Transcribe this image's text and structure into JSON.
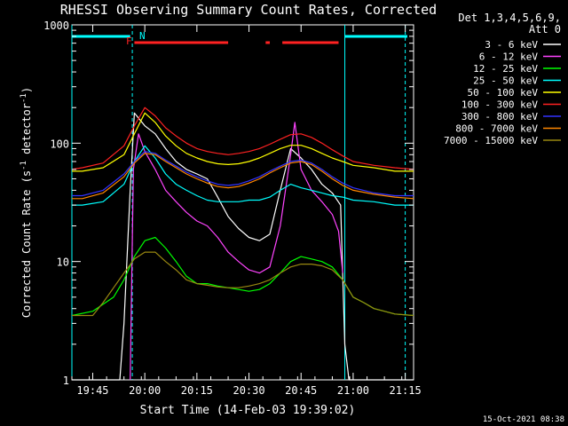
{
  "chart_data": {
    "type": "line",
    "title": "RHESSI Observing Summary Count Rates, Corrected",
    "xlabel": "Start Time (14-Feb-03 19:39:02)",
    "ylabel_main": "Corrected Count Rate (s",
    "ylabel_sup1": "-1",
    "ylabel_mid": " detector",
    "ylabel_sup2": "-1",
    "ylabel_end": ")",
    "y_scale": "log",
    "ylim": [
      1,
      1000
    ],
    "xlim": [
      19.65,
      21.29
    ],
    "x_ticks": [
      {
        "v": 19.75,
        "label": "19:45"
      },
      {
        "v": 20.0,
        "label": "20:00"
      },
      {
        "v": 20.25,
        "label": "20:15"
      },
      {
        "v": 20.5,
        "label": "20:30"
      },
      {
        "v": 20.75,
        "label": "20:45"
      },
      {
        "v": 21.0,
        "label": "21:00"
      },
      {
        "v": 21.25,
        "label": "21:15"
      }
    ],
    "y_ticks": [
      {
        "v": 1,
        "label": "1"
      },
      {
        "v": 10,
        "label": "10"
      },
      {
        "v": 100,
        "label": "100"
      },
      {
        "v": 1000,
        "label": "1000"
      }
    ],
    "legend_header": [
      "Det 1,3,4,5,6,9,",
      "Att 0"
    ],
    "legend_position": "right",
    "timestamp": "15-Oct-2021 08:38",
    "annotations": {
      "flare_flag": "F",
      "night_flag": "N"
    },
    "markers": {
      "cyan_vertical_solid": [
        19.63,
        20.96
      ],
      "cyan_vertical_dashed": [
        19.94,
        21.25
      ],
      "cyan_bar_segments": [
        [
          19.65,
          19.93
        ],
        [
          20.96,
          21.26
        ]
      ],
      "red_bar_segments": [
        [
          19.95,
          20.4
        ],
        [
          20.58,
          20.6
        ],
        [
          20.66,
          20.93
        ]
      ]
    },
    "series": [
      {
        "name": "3 - 6 keV",
        "color": "#ffffff",
        "points": [
          [
            19.62,
            1
          ],
          [
            19.88,
            1
          ],
          [
            19.9,
            3
          ],
          [
            19.93,
            40
          ],
          [
            19.95,
            180
          ],
          [
            20.0,
            140
          ],
          [
            20.05,
            120
          ],
          [
            20.1,
            90
          ],
          [
            20.15,
            70
          ],
          [
            20.2,
            60
          ],
          [
            20.25,
            55
          ],
          [
            20.3,
            50
          ],
          [
            20.35,
            35
          ],
          [
            20.4,
            24
          ],
          [
            20.45,
            19
          ],
          [
            20.5,
            16
          ],
          [
            20.55,
            15
          ],
          [
            20.6,
            17
          ],
          [
            20.65,
            40
          ],
          [
            20.7,
            90
          ],
          [
            20.75,
            75
          ],
          [
            20.8,
            60
          ],
          [
            20.85,
            45
          ],
          [
            20.9,
            38
          ],
          [
            20.94,
            30
          ],
          [
            20.96,
            2
          ],
          [
            20.98,
            1
          ],
          [
            21.3,
            1
          ]
        ]
      },
      {
        "name": "6 - 12 keV",
        "color": "#ff44ff",
        "points": [
          [
            19.93,
            1
          ],
          [
            19.945,
            60
          ],
          [
            19.97,
            120
          ],
          [
            20.0,
            85
          ],
          [
            20.05,
            60
          ],
          [
            20.1,
            40
          ],
          [
            20.15,
            32
          ],
          [
            20.2,
            26
          ],
          [
            20.25,
            22
          ],
          [
            20.3,
            20
          ],
          [
            20.35,
            16
          ],
          [
            20.4,
            12
          ],
          [
            20.45,
            10
          ],
          [
            20.5,
            8.5
          ],
          [
            20.55,
            8
          ],
          [
            20.6,
            9
          ],
          [
            20.65,
            20
          ],
          [
            20.7,
            80
          ],
          [
            20.72,
            150
          ],
          [
            20.75,
            60
          ],
          [
            20.8,
            40
          ],
          [
            20.85,
            32
          ],
          [
            20.9,
            25
          ],
          [
            20.93,
            18
          ],
          [
            20.95,
            8
          ]
        ]
      },
      {
        "name": "12 - 25 keV",
        "color": "#00ff00",
        "points": [
          [
            19.62,
            3.5
          ],
          [
            19.75,
            3.8
          ],
          [
            19.85,
            5
          ],
          [
            19.9,
            7
          ],
          [
            19.95,
            11
          ],
          [
            20.0,
            15
          ],
          [
            20.05,
            16
          ],
          [
            20.1,
            13
          ],
          [
            20.15,
            10
          ],
          [
            20.2,
            7.5
          ],
          [
            20.25,
            6.5
          ],
          [
            20.3,
            6.5
          ],
          [
            20.35,
            6.2
          ],
          [
            20.4,
            6
          ],
          [
            20.45,
            5.8
          ],
          [
            20.5,
            5.6
          ],
          [
            20.55,
            5.8
          ],
          [
            20.6,
            6.5
          ],
          [
            20.65,
            8
          ],
          [
            20.7,
            10
          ],
          [
            20.75,
            11
          ],
          [
            20.8,
            10.5
          ],
          [
            20.85,
            10
          ],
          [
            20.9,
            9
          ],
          [
            20.95,
            7
          ],
          [
            21.0,
            5
          ],
          [
            21.05,
            4.5
          ],
          [
            21.1,
            4
          ],
          [
            21.15,
            3.8
          ],
          [
            21.2,
            3.6
          ],
          [
            21.3,
            3.5
          ]
        ]
      },
      {
        "name": "25 - 50 keV",
        "color": "#00ffff",
        "points": [
          [
            19.62,
            30
          ],
          [
            19.7,
            30
          ],
          [
            19.8,
            32
          ],
          [
            19.9,
            45
          ],
          [
            19.95,
            70
          ],
          [
            20.0,
            95
          ],
          [
            20.05,
            75
          ],
          [
            20.1,
            55
          ],
          [
            20.15,
            45
          ],
          [
            20.2,
            40
          ],
          [
            20.25,
            36
          ],
          [
            20.3,
            33
          ],
          [
            20.35,
            32
          ],
          [
            20.4,
            32
          ],
          [
            20.45,
            32
          ],
          [
            20.5,
            33
          ],
          [
            20.55,
            33
          ],
          [
            20.6,
            35
          ],
          [
            20.65,
            40
          ],
          [
            20.7,
            45
          ],
          [
            20.75,
            42
          ],
          [
            20.8,
            40
          ],
          [
            20.85,
            38
          ],
          [
            20.9,
            36
          ],
          [
            20.95,
            35
          ],
          [
            21.0,
            33
          ],
          [
            21.1,
            32
          ],
          [
            21.2,
            30
          ],
          [
            21.3,
            30
          ]
        ]
      },
      {
        "name": "50 - 100 keV",
        "color": "#ffff00",
        "points": [
          [
            19.62,
            58
          ],
          [
            19.7,
            58
          ],
          [
            19.8,
            62
          ],
          [
            19.9,
            80
          ],
          [
            19.95,
            120
          ],
          [
            20.0,
            180
          ],
          [
            20.05,
            150
          ],
          [
            20.1,
            115
          ],
          [
            20.15,
            95
          ],
          [
            20.2,
            82
          ],
          [
            20.25,
            75
          ],
          [
            20.3,
            70
          ],
          [
            20.35,
            67
          ],
          [
            20.4,
            66
          ],
          [
            20.45,
            67
          ],
          [
            20.5,
            70
          ],
          [
            20.55,
            75
          ],
          [
            20.6,
            82
          ],
          [
            20.65,
            90
          ],
          [
            20.7,
            96
          ],
          [
            20.75,
            96
          ],
          [
            20.8,
            90
          ],
          [
            20.85,
            82
          ],
          [
            20.9,
            75
          ],
          [
            20.95,
            70
          ],
          [
            21.0,
            65
          ],
          [
            21.1,
            62
          ],
          [
            21.2,
            58
          ],
          [
            21.3,
            58
          ]
        ]
      },
      {
        "name": "100 - 300 keV",
        "color": "#ff2222",
        "points": [
          [
            19.62,
            60
          ],
          [
            19.7,
            62
          ],
          [
            19.8,
            68
          ],
          [
            19.9,
            95
          ],
          [
            19.95,
            140
          ],
          [
            20.0,
            200
          ],
          [
            20.05,
            170
          ],
          [
            20.1,
            135
          ],
          [
            20.15,
            115
          ],
          [
            20.2,
            100
          ],
          [
            20.25,
            90
          ],
          [
            20.3,
            85
          ],
          [
            20.35,
            82
          ],
          [
            20.4,
            80
          ],
          [
            20.45,
            82
          ],
          [
            20.5,
            85
          ],
          [
            20.55,
            90
          ],
          [
            20.6,
            98
          ],
          [
            20.65,
            108
          ],
          [
            20.7,
            118
          ],
          [
            20.75,
            120
          ],
          [
            20.8,
            112
          ],
          [
            20.85,
            100
          ],
          [
            20.9,
            88
          ],
          [
            20.95,
            78
          ],
          [
            21.0,
            70
          ],
          [
            21.1,
            65
          ],
          [
            21.2,
            62
          ],
          [
            21.3,
            60
          ]
        ]
      },
      {
        "name": "300 - 800 keV",
        "color": "#3333ff",
        "points": [
          [
            19.62,
            36
          ],
          [
            19.7,
            36
          ],
          [
            19.8,
            40
          ],
          [
            19.9,
            55
          ],
          [
            19.95,
            70
          ],
          [
            20.0,
            85
          ],
          [
            20.05,
            82
          ],
          [
            20.1,
            72
          ],
          [
            20.15,
            64
          ],
          [
            20.2,
            57
          ],
          [
            20.25,
            52
          ],
          [
            20.3,
            48
          ],
          [
            20.35,
            45
          ],
          [
            20.4,
            44
          ],
          [
            20.45,
            45
          ],
          [
            20.5,
            48
          ],
          [
            20.55,
            52
          ],
          [
            20.6,
            58
          ],
          [
            20.65,
            64
          ],
          [
            20.7,
            70
          ],
          [
            20.75,
            72
          ],
          [
            20.8,
            68
          ],
          [
            20.85,
            60
          ],
          [
            20.9,
            52
          ],
          [
            20.95,
            46
          ],
          [
            21.0,
            42
          ],
          [
            21.1,
            38
          ],
          [
            21.2,
            36
          ],
          [
            21.3,
            36
          ]
        ]
      },
      {
        "name": "800 - 7000 keV",
        "color": "#ff8800",
        "points": [
          [
            19.62,
            34
          ],
          [
            19.7,
            34
          ],
          [
            19.8,
            38
          ],
          [
            19.9,
            52
          ],
          [
            19.95,
            68
          ],
          [
            20.0,
            82
          ],
          [
            20.05,
            80
          ],
          [
            20.1,
            70
          ],
          [
            20.15,
            62
          ],
          [
            20.2,
            55
          ],
          [
            20.25,
            50
          ],
          [
            20.3,
            46
          ],
          [
            20.35,
            43
          ],
          [
            20.4,
            42
          ],
          [
            20.45,
            43
          ],
          [
            20.5,
            46
          ],
          [
            20.55,
            50
          ],
          [
            20.6,
            56
          ],
          [
            20.65,
            62
          ],
          [
            20.7,
            68
          ],
          [
            20.75,
            70
          ],
          [
            20.8,
            66
          ],
          [
            20.85,
            58
          ],
          [
            20.9,
            50
          ],
          [
            20.95,
            44
          ],
          [
            21.0,
            40
          ],
          [
            21.1,
            37
          ],
          [
            21.2,
            35
          ],
          [
            21.3,
            34
          ]
        ]
      },
      {
        "name": "7000 - 15000 keV",
        "color": "#998811",
        "points": [
          [
            19.62,
            3.5
          ],
          [
            19.75,
            3.5
          ],
          [
            19.8,
            4.5
          ],
          [
            19.85,
            6
          ],
          [
            19.9,
            8
          ],
          [
            19.95,
            10.5
          ],
          [
            20.0,
            12
          ],
          [
            20.05,
            12
          ],
          [
            20.1,
            10
          ],
          [
            20.15,
            8.5
          ],
          [
            20.2,
            7
          ],
          [
            20.25,
            6.5
          ],
          [
            20.3,
            6.3
          ],
          [
            20.35,
            6.1
          ],
          [
            20.4,
            6
          ],
          [
            20.45,
            6
          ],
          [
            20.5,
            6.2
          ],
          [
            20.55,
            6.5
          ],
          [
            20.6,
            7
          ],
          [
            20.65,
            8
          ],
          [
            20.7,
            9
          ],
          [
            20.75,
            9.5
          ],
          [
            20.8,
            9.5
          ],
          [
            20.85,
            9.2
          ],
          [
            20.9,
            8.5
          ],
          [
            20.95,
            7
          ],
          [
            21.0,
            5
          ],
          [
            21.05,
            4.5
          ],
          [
            21.1,
            4
          ],
          [
            21.15,
            3.8
          ],
          [
            21.2,
            3.6
          ],
          [
            21.3,
            3.5
          ]
        ]
      }
    ]
  }
}
